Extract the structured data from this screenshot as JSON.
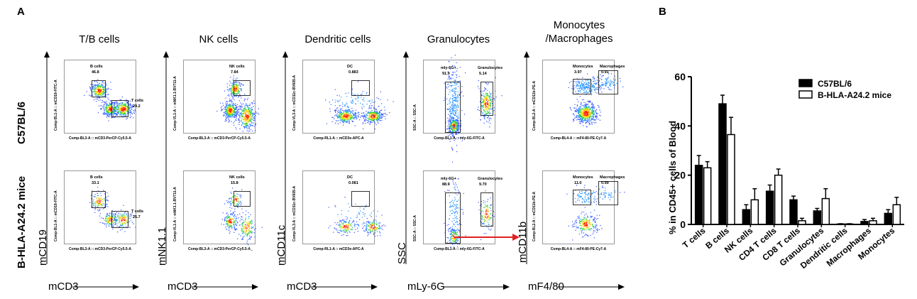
{
  "panel_a_label": "A",
  "panel_b_label": "B",
  "columns": [
    {
      "title": "T/B cells",
      "ylabel": "mCD19",
      "xlabel": "mCD3",
      "plot_x": "Comp-BL3-A :: mCD3-PerCP-Cy5.5-A",
      "plot_y": "Comp-BL1-A :: mCD19-FITC-A"
    },
    {
      "title": "NK cells",
      "ylabel": "mNK1.1",
      "xlabel": "mCD3",
      "plot_x": "Comp-BL3-A :: mCD3-PerCP-Cy5.5-A",
      "plot_y": "Comp-VL1-A :: mNK1.1-BV711-A"
    },
    {
      "title": "Dendritic cells",
      "ylabel": "mCD11c",
      "xlabel": "mCD3",
      "plot_x": "Comp-RL1-A :: mCD3e-APC-A",
      "plot_y": "Comp-VL3-A :: mCD11c-BV605-A"
    },
    {
      "title": "Granulocytes",
      "ylabel": "SSC",
      "xlabel": "mLy-6G",
      "plot_x": "Comp-BL1-A :: mly-6G-FITC-A",
      "plot_y": "SSC-A :: SSC-A"
    },
    {
      "title": "Monocytes\n/Macrophages",
      "ylabel": "mCD11b",
      "xlabel": "mF4/80",
      "plot_x": "Comp-BL4-A :: mF4-80-PE-Cy7-A",
      "plot_y": "Comp-BL2-A :: mCD11b-PE-A"
    }
  ],
  "rows": [
    "C57BL/6",
    "B-HLA-A24.2 mice"
  ],
  "gates": [
    [
      [
        {
          "name": "B cells",
          "value": "46.8"
        },
        {
          "name": "T cells",
          "value": "29.2"
        }
      ],
      [
        {
          "name": "NK cells",
          "value": "7.84"
        }
      ],
      [
        {
          "name": "DC",
          "value": "0.883"
        }
      ],
      [
        {
          "name": "mly-6G+",
          "value": "91.9"
        },
        {
          "name": "Granulocytes",
          "value": "5.14"
        }
      ],
      [
        {
          "name": "Monocytes",
          "value": "3.97"
        },
        {
          "name": "Macrophages",
          "value": "0.91"
        }
      ]
    ],
    [
      [
        {
          "name": "B cells",
          "value": "33.1"
        },
        {
          "name": "T cells",
          "value": "25.7"
        }
      ],
      [
        {
          "name": "NK cells",
          "value": "15.8"
        }
      ],
      [
        {
          "name": "DC",
          "value": "0.081"
        }
      ],
      [
        {
          "name": "mly-6G+",
          "value": "88.9"
        },
        {
          "name": "Granulocytes",
          "value": "9.70"
        }
      ],
      [
        {
          "name": "Monocytes",
          "value": "11.0"
        },
        {
          "name": "Macrophages",
          "value": "0.99"
        }
      ]
    ]
  ],
  "colors": {
    "c57": "#000000",
    "hla": "#ffffff",
    "arrow_red": "#e02020"
  },
  "chart_data": {
    "type": "bar",
    "title": "",
    "xlabel": "",
    "ylabel": "% in CD45+ cells of Blood",
    "ylim": [
      0,
      60
    ],
    "yticks": [
      0,
      20,
      40,
      60
    ],
    "categories": [
      "T cells",
      "B cells",
      "NK cells",
      "CD4 T cells",
      "CD8 T cells",
      "Granulocytes",
      "Dendritic cells",
      "Macrophages",
      "Monocytes"
    ],
    "legend_position": "top-right",
    "series": [
      {
        "name": "C57BL/6",
        "fill": "#000000",
        "values": [
          24,
          49,
          6,
          13.5,
          10,
          5.5,
          0.2,
          1.2,
          4.5
        ],
        "errors": [
          4,
          3.5,
          2,
          2.5,
          1.5,
          1,
          0.1,
          0.8,
          1.5
        ]
      },
      {
        "name": "B-HLA-A24.2 mice",
        "fill": "#ffffff",
        "values": [
          23,
          36.5,
          10,
          20,
          1.5,
          10.5,
          0.2,
          1.5,
          8
        ],
        "errors": [
          2.5,
          7,
          4.5,
          2.5,
          1,
          4,
          0.1,
          1,
          3
        ]
      }
    ]
  }
}
